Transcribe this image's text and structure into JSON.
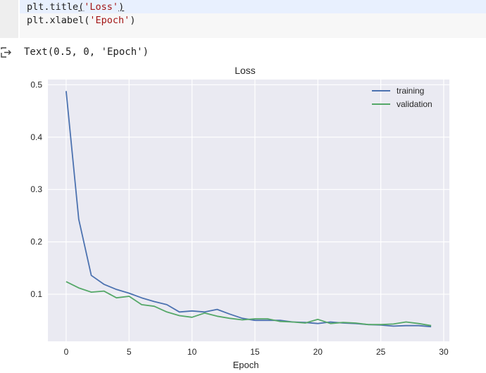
{
  "code": {
    "line1_prefix": "plt.title",
    "line1_open": "(",
    "line1_arg": "'Loss'",
    "line1_close": ")",
    "line2_prefix": "plt.xlabel(",
    "line2_arg": "'Epoch'",
    "line2_close": ")"
  },
  "output": {
    "icon": "output-arrow-icon",
    "text": "Text(0.5, 0, 'Epoch')"
  },
  "chart_data": {
    "type": "line",
    "title": "Loss",
    "xlabel": "Epoch",
    "ylabel": "",
    "xlim": [
      -1.45,
      30.45
    ],
    "ylim": [
      0.01,
      0.51
    ],
    "xticks": [
      0,
      5,
      10,
      15,
      20,
      25,
      30
    ],
    "yticks": [
      0.1,
      0.2,
      0.3,
      0.4,
      0.5
    ],
    "grid": true,
    "legend_position": "upper right",
    "series": [
      {
        "name": "training",
        "color": "#4c72b0",
        "x": [
          0,
          1,
          2,
          3,
          4,
          5,
          6,
          7,
          8,
          9,
          10,
          11,
          12,
          13,
          14,
          15,
          16,
          17,
          18,
          19,
          20,
          21,
          22,
          23,
          24,
          25,
          26,
          27,
          28,
          29
        ],
        "values": [
          0.488,
          0.243,
          0.136,
          0.119,
          0.109,
          0.102,
          0.093,
          0.086,
          0.08,
          0.066,
          0.068,
          0.066,
          0.071,
          0.062,
          0.054,
          0.05,
          0.05,
          0.05,
          0.047,
          0.046,
          0.044,
          0.047,
          0.045,
          0.044,
          0.042,
          0.041,
          0.039,
          0.04,
          0.04,
          0.038
        ]
      },
      {
        "name": "validation",
        "color": "#55a868",
        "x": [
          0,
          1,
          2,
          3,
          4,
          5,
          6,
          7,
          8,
          9,
          10,
          11,
          12,
          13,
          14,
          15,
          16,
          17,
          18,
          19,
          20,
          21,
          22,
          23,
          24,
          25,
          26,
          27,
          28,
          29
        ],
        "values": [
          0.124,
          0.112,
          0.104,
          0.106,
          0.093,
          0.096,
          0.08,
          0.077,
          0.066,
          0.059,
          0.056,
          0.064,
          0.058,
          0.054,
          0.051,
          0.053,
          0.053,
          0.048,
          0.047,
          0.045,
          0.052,
          0.044,
          0.046,
          0.045,
          0.042,
          0.042,
          0.043,
          0.047,
          0.044,
          0.04
        ]
      }
    ]
  },
  "colors": {
    "plot_bg": "#eaeaf2",
    "grid": "#ffffff"
  }
}
